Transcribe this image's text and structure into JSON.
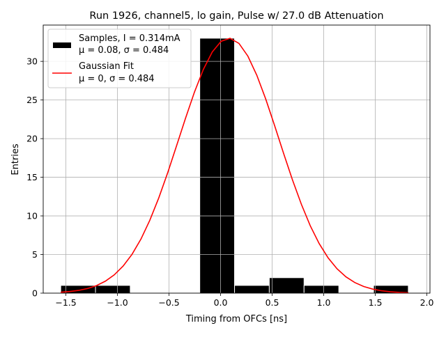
{
  "chart_data": {
    "type": "bar",
    "title": "Run 1926, channel5, lo gain, Pulse w/ 27.0 dB Attenuation",
    "xlabel": "Timing from OFCs [ns]",
    "ylabel": "Entries",
    "xlim": [
      -1.72,
      2.03
    ],
    "ylim": [
      0,
      34.7
    ],
    "xticks": [
      -1.5,
      -1.0,
      -0.5,
      0.0,
      0.5,
      1.0,
      1.5,
      2.0
    ],
    "xtick_labels": [
      "−1.5",
      "−1.0",
      "−0.5",
      "0.0",
      "0.5",
      "1.0",
      "1.5",
      "2.0"
    ],
    "yticks": [
      0,
      5,
      10,
      15,
      20,
      25,
      30
    ],
    "ytick_labels": [
      "0",
      "5",
      "10",
      "15",
      "20",
      "25",
      "30"
    ],
    "grid": true,
    "legend_position": "top-left",
    "histogram": {
      "name": "Samples",
      "bin_edges": [
        -1.55,
        -1.213,
        -0.876,
        -0.539,
        -0.202,
        0.135,
        0.472,
        0.809,
        1.146,
        1.483,
        1.82
      ],
      "counts": [
        1,
        1,
        0,
        0,
        33,
        1,
        2,
        1,
        0,
        1
      ],
      "color": "#000000"
    },
    "fit": {
      "name": "Gaussian Fit",
      "amplitude": 33,
      "mean": 0.08,
      "sigma": 0.484,
      "x_range": [
        -1.55,
        1.82
      ],
      "n_points": 40,
      "color": "#ff0000"
    },
    "legend": [
      {
        "line1": "Samples, I = 0.314mA",
        "line2": "μ = 0.08, σ = 0.484"
      },
      {
        "line1": "Gaussian Fit",
        "line2": "μ = 0, σ = 0.484"
      }
    ]
  }
}
